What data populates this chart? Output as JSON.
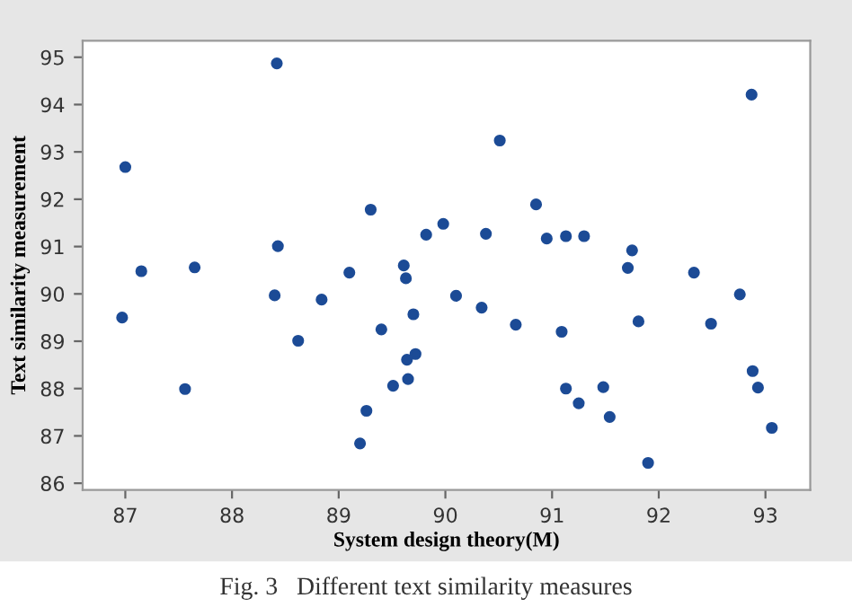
{
  "chart_data": {
    "type": "scatter",
    "xlabel": "System design theory(M)",
    "ylabel": "Text similarity measurement",
    "annotations": [
      "Fig. 3   Different text similarity measures"
    ],
    "x": [
      87.0,
      86.97,
      87.15,
      87.56,
      87.65,
      88.42,
      88.43,
      88.4,
      88.62,
      88.84,
      89.1,
      89.3,
      89.26,
      89.2,
      89.4,
      89.51,
      89.61,
      89.63,
      89.7,
      89.72,
      89.64,
      89.65,
      89.82,
      89.98,
      90.1,
      90.34,
      90.38,
      90.51,
      90.66,
      90.85,
      90.95,
      91.09,
      91.13,
      91.3,
      91.13,
      91.25,
      91.48,
      91.54,
      91.71,
      91.75,
      91.81,
      91.9,
      92.33,
      92.49,
      92.76,
      92.87,
      92.88,
      92.93,
      93.06
    ],
    "series": [
      {
        "color": "#1c4b96",
        "values": [
          92.68,
          89.5,
          90.48,
          87.99,
          90.56,
          94.87,
          91.01,
          89.97,
          89.01,
          89.88,
          90.45,
          91.78,
          87.53,
          86.84,
          89.25,
          88.06,
          90.6,
          90.33,
          89.57,
          88.73,
          88.61,
          88.2,
          91.25,
          91.48,
          89.96,
          89.71,
          91.27,
          93.24,
          89.35,
          91.89,
          91.17,
          89.2,
          91.22,
          91.22,
          88.0,
          87.69,
          88.03,
          87.4,
          90.55,
          90.92,
          89.42,
          86.43,
          90.45,
          89.37,
          89.99,
          94.21,
          88.37,
          88.02,
          87.17
        ]
      }
    ],
    "xlim": [
      86.6,
      93.42
    ],
    "ylim": [
      85.86,
      95.35
    ],
    "xticks": [
      87,
      88,
      89,
      90,
      91,
      92,
      93
    ],
    "yticks": [
      86,
      87,
      88,
      89,
      90,
      91,
      92,
      93,
      94,
      95
    ],
    "marker": "circle",
    "grid": false,
    "legend": false
  }
}
